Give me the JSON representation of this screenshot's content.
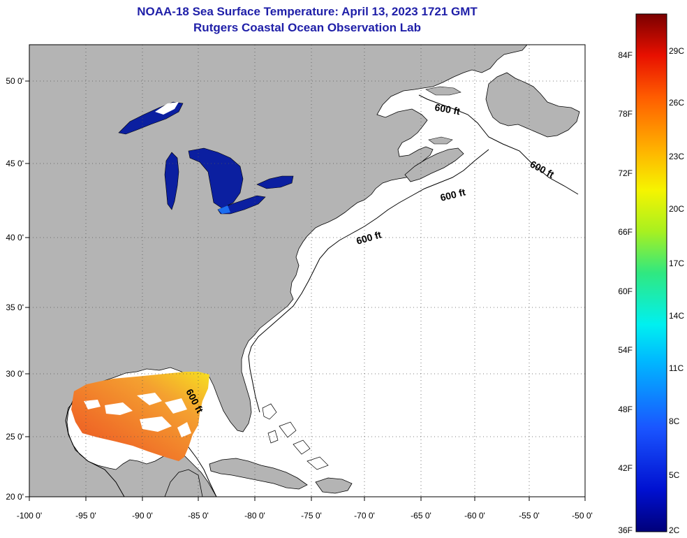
{
  "title": {
    "line1": "NOAA-18 Sea Surface Temperature:  April 13, 2023 1721 GMT",
    "line2": "Rutgers Coastal Ocean Observation Lab"
  },
  "lat_labels": [
    "50 0'",
    "45 0'",
    "40 0'",
    "35 0'",
    "30 0'",
    "25 0'",
    "20 0'"
  ],
  "lon_labels": [
    "-100 0'",
    "-95 0'",
    "-90 0'",
    "-85 0'",
    "-80 0'",
    "-75 0'",
    "-70 0'",
    "-65 0'",
    "-60 0'",
    "-55 0'",
    "-50 0'"
  ],
  "depth_label": "600 ft",
  "colorbar": {
    "f_labels": [
      "84F",
      "78F",
      "72F",
      "66F",
      "60F",
      "54F",
      "48F",
      "42F",
      "36F"
    ],
    "c_labels": [
      "29C",
      "26C",
      "23C",
      "20C",
      "17C",
      "14C",
      "11C",
      "8C",
      "5C",
      "2C"
    ]
  },
  "colors": {
    "land": "#b4b4b4",
    "ocean": "#ffffff",
    "title": "#1f1fa8",
    "great_lakes": "#0b1fa0",
    "gulf_warm": "#f07828"
  }
}
